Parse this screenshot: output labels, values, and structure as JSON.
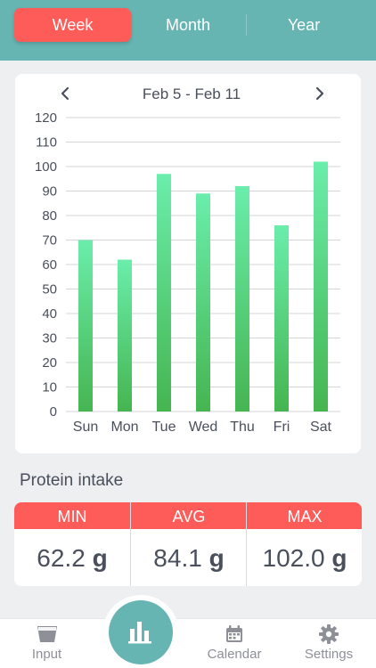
{
  "tabs": {
    "week": "Week",
    "month": "Month",
    "year": "Year",
    "active": "Week"
  },
  "range": {
    "title": "Feb 5 - Feb 11",
    "prev_icon": "chevron-left-icon",
    "next_icon": "chevron-right-icon"
  },
  "chart_data": {
    "type": "bar",
    "categories": [
      "Sun",
      "Mon",
      "Tue",
      "Wed",
      "Thu",
      "Fri",
      "Sat"
    ],
    "values": [
      70,
      62,
      97,
      89,
      92,
      76,
      102
    ],
    "ylim": [
      0,
      120
    ],
    "yticks": [
      0,
      10,
      20,
      30,
      40,
      50,
      60,
      70,
      80,
      90,
      100,
      110,
      120
    ],
    "grid": true,
    "bar_color_top": "#6aeeac",
    "bar_color_bottom": "#45b550"
  },
  "summary": {
    "title": "Protein intake",
    "stats": [
      {
        "label": "MIN",
        "value": "62.2",
        "unit": "g"
      },
      {
        "label": "AVG",
        "value": "84.1",
        "unit": "g"
      },
      {
        "label": "MAX",
        "value": "102.0",
        "unit": "g"
      }
    ]
  },
  "bottom_nav": {
    "input": {
      "label": "Input",
      "icon": "cup-icon"
    },
    "stats": {
      "icon": "bar-chart-icon"
    },
    "calendar": {
      "label": "Calendar",
      "icon": "calendar-icon"
    },
    "settings": {
      "label": "Settings",
      "icon": "gear-icon"
    }
  },
  "colors": {
    "header": "#66b5b3",
    "accent": "#fd5c58",
    "background": "#eeeff1"
  }
}
